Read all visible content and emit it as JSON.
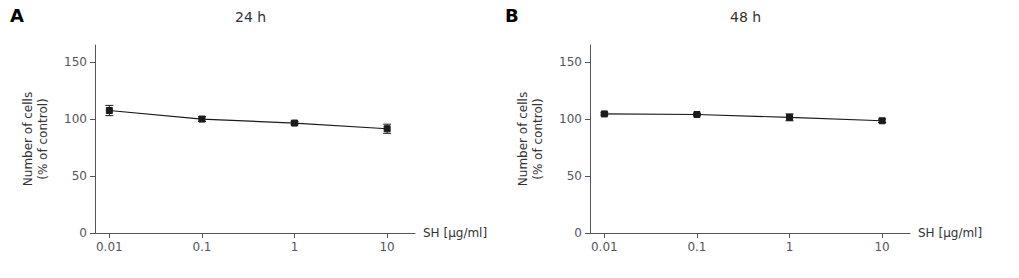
{
  "chart_data": [
    {
      "type": "line",
      "title": "24 h",
      "annotation": "A",
      "x": [
        0.01,
        0.1,
        1,
        10
      ],
      "values": [
        107.5,
        100.0,
        96.5,
        91.5
      ],
      "errors": [
        4.5,
        2.0,
        1.5,
        4.0
      ],
      "x_label": "SH [µg/ml]",
      "y_label": "Number of cells\n(% of control)",
      "log": "x",
      "xlim": [
        0.007,
        20
      ],
      "xticks": [
        0.01,
        0.1,
        1,
        10
      ],
      "ylim": [
        0,
        165
      ],
      "yticks": [
        0,
        50,
        100,
        150
      ],
      "color": "#1a1a1a",
      "marker": "square",
      "line_style": "solid",
      "grid": false
    },
    {
      "type": "line",
      "title": "48 h",
      "annotation": "B",
      "x": [
        0.01,
        0.1,
        1,
        10
      ],
      "values": [
        104.5,
        104.0,
        101.5,
        98.5
      ],
      "errors": [
        1.0,
        1.0,
        3.0,
        1.5
      ],
      "x_label": "SH [µg/ml]",
      "y_label": "Number of cells\n(% of control)",
      "log": "x",
      "xlim": [
        0.007,
        20
      ],
      "xticks": [
        0.01,
        0.1,
        1,
        10
      ],
      "ylim": [
        0,
        165
      ],
      "yticks": [
        0,
        50,
        100,
        150
      ],
      "color": "#1a1a1a",
      "marker": "square",
      "line_style": "solid",
      "grid": false
    }
  ]
}
